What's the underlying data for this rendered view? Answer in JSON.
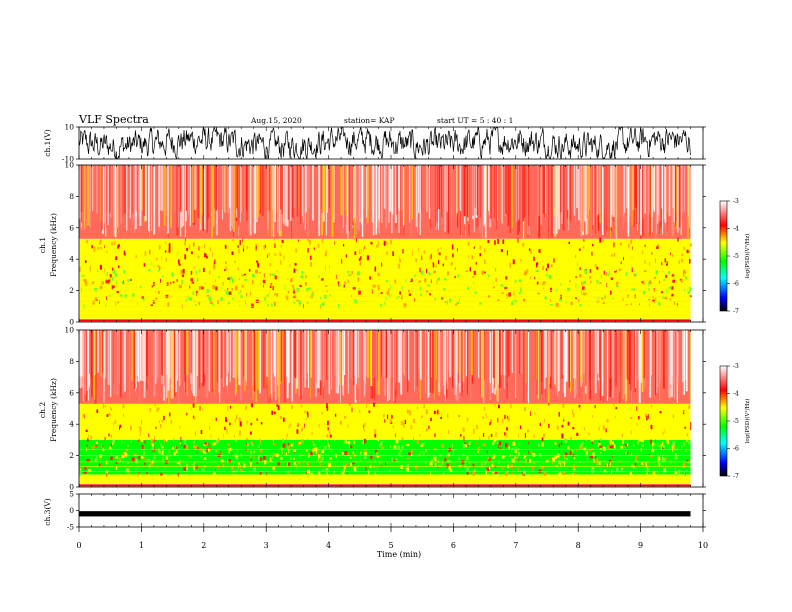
{
  "header": {
    "title": "VLF Spectra",
    "date": "Aug.15, 2020",
    "station": "station= KAP",
    "start": "start  UT =   5 : 40 : 1"
  },
  "colors": {
    "background": "#ffffff",
    "axis": "#000000",
    "spectrogram_base": "#ff2a1a",
    "colormap": [
      "#ffffff",
      "#ff0000",
      "#ffff00",
      "#00ff00",
      "#00ffff",
      "#0000ff",
      "#000000"
    ]
  },
  "chart_data": [
    {
      "type": "line",
      "name": "ch1-waveform",
      "ylabel": "ch.1(V)",
      "ylim": [
        -10,
        10
      ],
      "yticks": [
        "10",
        "-10"
      ],
      "xlim": [
        0,
        10
      ],
      "note_values": "dense noisy waveform spanning roughly -9 V to +9 V across 0 to 9.8 min"
    },
    {
      "type": "heatmap",
      "name": "ch1-spectrogram",
      "ylabel": "ch.1\nFrequency (kHz)",
      "ylim": [
        0,
        10
      ],
      "yticks": [
        "0",
        "2",
        "4",
        "6",
        "8",
        "10"
      ],
      "xlim": [
        0,
        10
      ],
      "colorbar": {
        "label": "log(PSD)(V²/Hz)",
        "range": [
          -7,
          -3
        ],
        "ticks": [
          "-3",
          "-4",
          "-5",
          "-6",
          "-7"
        ]
      },
      "bands": [
        {
          "fmin": 0.2,
          "fmax": 1.0,
          "level": -4.3
        },
        {
          "fmin": 1.0,
          "fmax": 3.3,
          "level": -4.8
        },
        {
          "fmin": 3.3,
          "fmax": 5.3,
          "level": -4.2
        },
        {
          "fmin": 5.3,
          "fmax": 10.0,
          "level": -3.6
        }
      ],
      "data_end_min": 9.8
    },
    {
      "type": "heatmap",
      "name": "ch2-spectrogram",
      "ylabel": "ch.2\nFrequency (kHz)",
      "ylim": [
        0,
        10
      ],
      "yticks": [
        "0",
        "2",
        "4",
        "6",
        "8",
        "10"
      ],
      "xlim": [
        0,
        10
      ],
      "colorbar": {
        "label": "log(PSD)(V²/Hz)",
        "range": [
          -7,
          -3
        ],
        "ticks": [
          "-3",
          "-4",
          "-5",
          "-6",
          "-7"
        ]
      },
      "bands": [
        {
          "fmin": 0.2,
          "fmax": 0.8,
          "level": -4.4
        },
        {
          "fmin": 0.8,
          "fmax": 3.0,
          "level": -5.0
        },
        {
          "fmin": 3.0,
          "fmax": 5.3,
          "level": -4.3
        },
        {
          "fmin": 5.3,
          "fmax": 10.0,
          "level": -3.6
        }
      ],
      "data_end_min": 9.8
    },
    {
      "type": "line",
      "name": "ch3-waveform",
      "ylabel": "ch.3(V)",
      "ylim": [
        -5,
        5
      ],
      "yticks": [
        "5",
        "0",
        "-5"
      ],
      "xlim": [
        0,
        10
      ],
      "note_values": "thin band around -1 V from 0 to 9.8 min"
    }
  ],
  "xaxis": {
    "label": "Time  (min)",
    "ticks": [
      "0",
      "1",
      "2",
      "3",
      "4",
      "5",
      "6",
      "7",
      "8",
      "9",
      "10"
    ]
  }
}
